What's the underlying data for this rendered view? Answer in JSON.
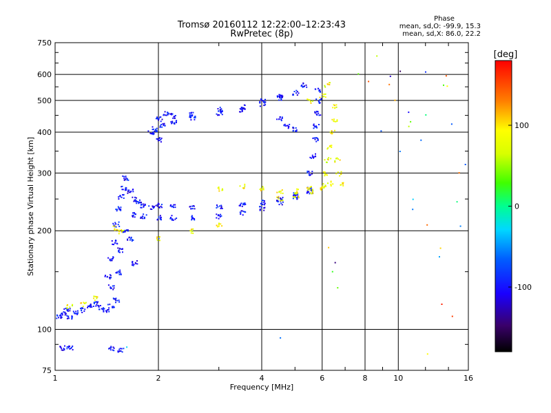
{
  "chart_data": {
    "type": "scatter",
    "title": "Tromsø 20160112 12:22:00–12:23:43",
    "subtitle": "RwPretec (8p)",
    "xlabel": "Frequency [MHz]",
    "ylabel": "Stationary phase Virtual Height [km]",
    "x_scale": "log",
    "y_scale": "log",
    "xlim": [
      1,
      16
    ],
    "ylim": [
      75,
      750
    ],
    "x_ticks": [
      1,
      2,
      4,
      6,
      8,
      10,
      16
    ],
    "y_ticks": [
      75,
      100,
      200,
      300,
      400,
      500,
      600,
      750
    ],
    "grid": true,
    "stats": {
      "heading": "Phase",
      "line_o": "mean, sd,O:  -99.9, 15.3",
      "line_x": "mean, sd,X:  86.0, 22.2"
    },
    "colorbar": {
      "unit": "[deg]",
      "range": [
        -180,
        180
      ],
      "ticks": [
        100,
        0,
        -100
      ],
      "tick_labels": [
        "100",
        "0",
        "-100"
      ]
    },
    "series": [
      {
        "mode": "O",
        "phase_mean": -99.9,
        "points": [
          [
            1.02,
            110
          ],
          [
            1.05,
            112
          ],
          [
            1.08,
            115
          ],
          [
            1.1,
            110
          ],
          [
            1.15,
            113
          ],
          [
            1.2,
            115
          ],
          [
            1.25,
            118
          ],
          [
            1.3,
            120
          ],
          [
            1.35,
            117
          ],
          [
            1.4,
            115
          ],
          [
            1.45,
            118
          ],
          [
            1.5,
            123
          ],
          [
            1.05,
            88
          ],
          [
            1.1,
            88
          ],
          [
            1.45,
            88
          ],
          [
            1.55,
            87
          ],
          [
            1.42,
            145
          ],
          [
            1.45,
            165
          ],
          [
            1.48,
            185
          ],
          [
            1.5,
            210
          ],
          [
            1.52,
            235
          ],
          [
            1.55,
            255
          ],
          [
            1.58,
            270
          ],
          [
            1.6,
            290
          ],
          [
            1.65,
            265
          ],
          [
            1.7,
            250
          ],
          [
            1.55,
            175
          ],
          [
            1.6,
            200
          ],
          [
            1.65,
            190
          ],
          [
            1.7,
            160
          ],
          [
            1.52,
            150
          ],
          [
            1.45,
            135
          ],
          [
            1.75,
            245
          ],
          [
            1.8,
            240
          ],
          [
            1.9,
            237
          ],
          [
            2.0,
            240
          ],
          [
            2.2,
            240
          ],
          [
            2.5,
            238
          ],
          [
            3.0,
            237
          ],
          [
            3.5,
            240
          ],
          [
            4.0,
            245
          ],
          [
            4.5,
            250
          ],
          [
            5.0,
            258
          ],
          [
            5.5,
            268
          ],
          [
            1.7,
            225
          ],
          [
            1.8,
            222
          ],
          [
            2.0,
            220
          ],
          [
            2.2,
            220
          ],
          [
            2.5,
            220
          ],
          [
            3.0,
            222
          ],
          [
            3.5,
            228
          ],
          [
            4.0,
            235
          ],
          [
            4.5,
            245
          ],
          [
            5.0,
            255
          ],
          [
            5.5,
            265
          ],
          [
            5.5,
            300
          ],
          [
            5.6,
            340
          ],
          [
            5.7,
            380
          ],
          [
            5.75,
            420
          ],
          [
            5.8,
            460
          ],
          [
            5.85,
            500
          ],
          [
            5.8,
            540
          ],
          [
            4.5,
            440
          ],
          [
            4.7,
            420
          ],
          [
            5.0,
            410
          ],
          [
            1.9,
            400
          ],
          [
            2.0,
            380
          ],
          [
            2.05,
            420
          ],
          [
            2.1,
            460
          ],
          [
            2.0,
            440
          ],
          [
            1.95,
            410
          ],
          [
            2.2,
            450
          ],
          [
            2.5,
            455
          ],
          [
            3.0,
            460
          ],
          [
            3.5,
            470
          ],
          [
            4.0,
            490
          ],
          [
            4.5,
            510
          ],
          [
            5.0,
            530
          ],
          [
            5.3,
            560
          ],
          [
            2.2,
            430
          ],
          [
            2.5,
            445
          ],
          [
            3.0,
            470
          ],
          [
            3.5,
            480
          ],
          [
            4.0,
            500
          ],
          [
            4.5,
            520
          ]
        ]
      },
      {
        "mode": "X",
        "phase_mean": 86.0,
        "points": [
          [
            3.0,
            270
          ],
          [
            3.5,
            275
          ],
          [
            4.0,
            270
          ],
          [
            4.5,
            265
          ],
          [
            5.0,
            265
          ],
          [
            5.5,
            270
          ],
          [
            6.0,
            275
          ],
          [
            4.5,
            252
          ],
          [
            5.0,
            258
          ],
          [
            5.5,
            265
          ],
          [
            6.0,
            272
          ],
          [
            6.3,
            280
          ],
          [
            6.1,
            300
          ],
          [
            6.2,
            330
          ],
          [
            6.3,
            360
          ],
          [
            6.4,
            400
          ],
          [
            6.5,
            440
          ],
          [
            6.5,
            480
          ],
          [
            6.6,
            330
          ],
          [
            6.7,
            300
          ],
          [
            6.8,
            280
          ],
          [
            5.5,
            500
          ],
          [
            6.0,
            520
          ],
          [
            6.2,
            560
          ],
          [
            1.1,
            118
          ],
          [
            1.2,
            120
          ],
          [
            1.3,
            125
          ],
          [
            1.5,
            205
          ],
          [
            1.55,
            200
          ],
          [
            2.0,
            190
          ],
          [
            2.5,
            200
          ],
          [
            3.0,
            210
          ]
        ]
      },
      {
        "mode": "noise",
        "points": [
          [
            1.6,
            88
          ],
          [
            2.0,
            190
          ],
          [
            4.6,
            95
          ],
          [
            6.3,
            180
          ],
          [
            6.4,
            160
          ],
          [
            6.5,
            150
          ],
          [
            6.6,
            135
          ],
          [
            9.5,
            570
          ],
          [
            10,
            610
          ],
          [
            10.5,
            470
          ],
          [
            11,
            430
          ],
          [
            12,
            450
          ],
          [
            12,
            620
          ],
          [
            13,
            180
          ],
          [
            13,
            165
          ],
          [
            14,
            600
          ],
          [
            14,
            550
          ],
          [
            15,
            300
          ],
          [
            15,
            250
          ],
          [
            9.8,
            500
          ],
          [
            10.2,
            350
          ],
          [
            11.2,
            250
          ],
          [
            12.3,
            210
          ],
          [
            13.1,
            120
          ],
          [
            14.2,
            110
          ],
          [
            15.4,
            320
          ],
          [
            8.8,
            690
          ],
          [
            10.8,
            230
          ],
          [
            12.1,
            85
          ],
          [
            13.5,
            560
          ],
          [
            9,
            400
          ],
          [
            10.5,
            420
          ],
          [
            11.8,
            380
          ],
          [
            14.5,
            430
          ],
          [
            15.2,
            210
          ],
          [
            7.5,
            610
          ],
          [
            8,
            570
          ],
          [
            9.3,
            590
          ]
        ]
      }
    ]
  }
}
